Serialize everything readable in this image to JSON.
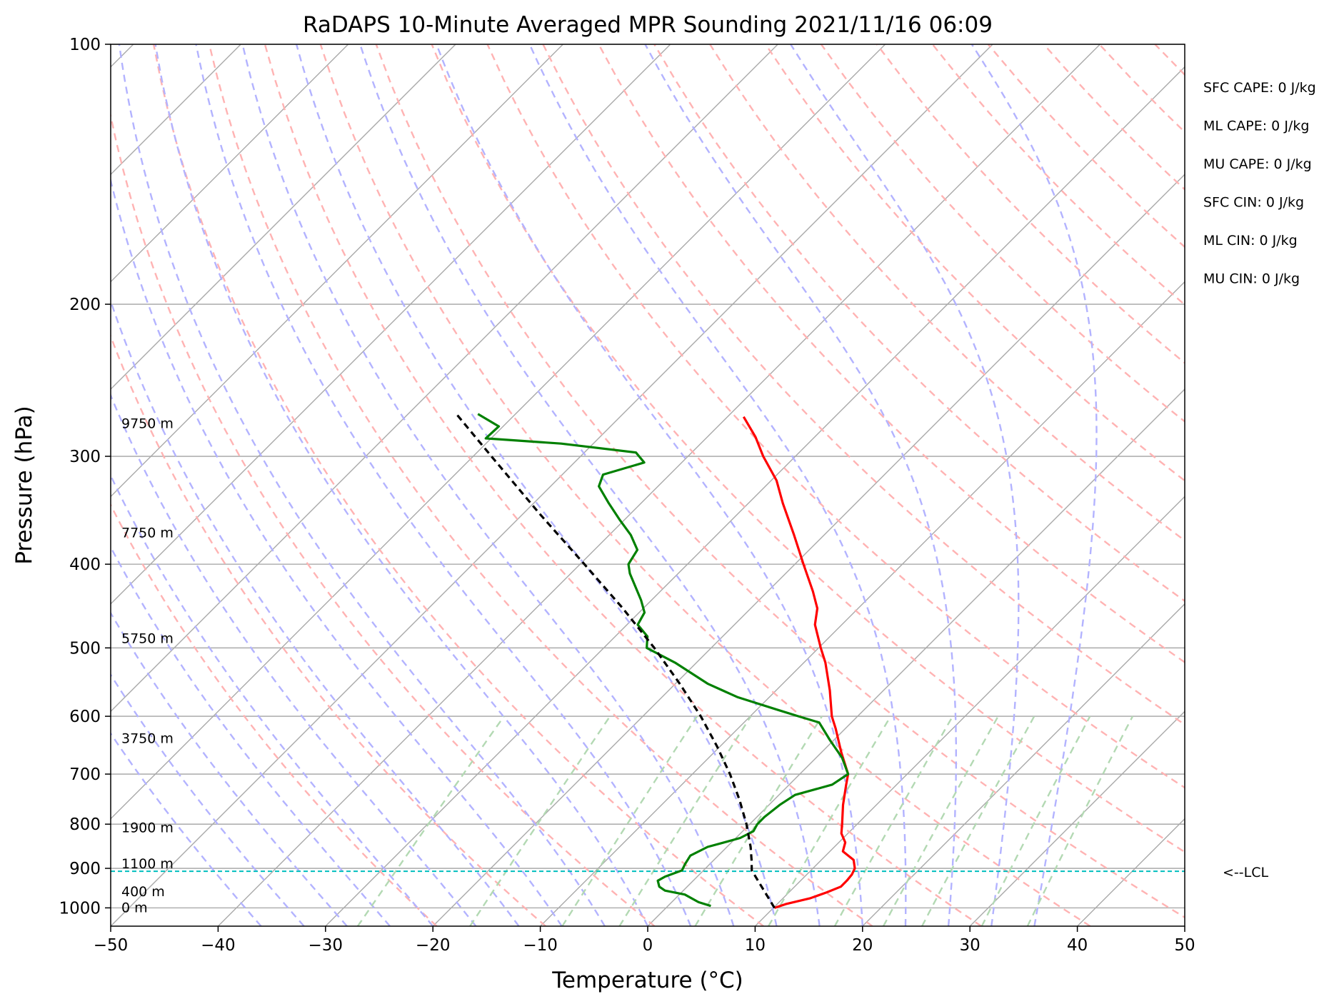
{
  "chart_data": {
    "type": "line",
    "title": "RaDAPS 10-Minute Averaged MPR Sounding 2021/11/16 06:09",
    "xlabel": "Temperature (°C)",
    "ylabel": "Pressure (hPa)",
    "xlim": [
      -50,
      50
    ],
    "ylim": [
      1050,
      100
    ],
    "y_scale": "log",
    "grid": true,
    "x_ticks": [
      -50,
      -40,
      -30,
      -20,
      -10,
      0,
      10,
      20,
      30,
      40,
      50
    ],
    "x_tick_labels": [
      "−50",
      "−40",
      "−30",
      "−20",
      "−10",
      "0",
      "10",
      "20",
      "30",
      "40",
      "50"
    ],
    "y_ticks": [
      100,
      200,
      300,
      400,
      500,
      600,
      700,
      800,
      900,
      1000
    ],
    "y_tick_labels": [
      "100",
      "200",
      "300",
      "400",
      "500",
      "600",
      "700",
      "800",
      "900",
      "1000"
    ],
    "series": [
      {
        "role": "temperature",
        "color": "#ff0000",
        "points": [
          {
            "p": 1000,
            "t": 10.1
          },
          {
            "p": 990,
            "t": 10.8
          },
          {
            "p": 975,
            "t": 12.5
          },
          {
            "p": 960,
            "t": 13.5
          },
          {
            "p": 945,
            "t": 14.3
          },
          {
            "p": 930,
            "t": 14.3
          },
          {
            "p": 915,
            "t": 14.2
          },
          {
            "p": 900,
            "t": 13.9
          },
          {
            "p": 880,
            "t": 13.0
          },
          {
            "p": 860,
            "t": 11.2
          },
          {
            "p": 840,
            "t": 10.6
          },
          {
            "p": 820,
            "t": 9.4
          },
          {
            "p": 800,
            "t": 8.6
          },
          {
            "p": 760,
            "t": 6.9
          },
          {
            "p": 720,
            "t": 5.3
          },
          {
            "p": 700,
            "t": 4.5
          },
          {
            "p": 660,
            "t": 1.8
          },
          {
            "p": 620,
            "t": -0.9
          },
          {
            "p": 600,
            "t": -2.4
          },
          {
            "p": 560,
            "t": -5.0
          },
          {
            "p": 520,
            "t": -8.0
          },
          {
            "p": 500,
            "t": -9.8
          },
          {
            "p": 470,
            "t": -12.5
          },
          {
            "p": 450,
            "t": -13.8
          },
          {
            "p": 430,
            "t": -15.8
          },
          {
            "p": 400,
            "t": -19.2
          },
          {
            "p": 370,
            "t": -22.8
          },
          {
            "p": 340,
            "t": -26.8
          },
          {
            "p": 320,
            "t": -29.5
          },
          {
            "p": 300,
            "t": -33.0
          },
          {
            "p": 285,
            "t": -35.5
          },
          {
            "p": 270,
            "t": -38.5
          }
        ]
      },
      {
        "role": "dewpoint",
        "color": "#008000",
        "points": [
          {
            "p": 995,
            "t": 4.0
          },
          {
            "p": 985,
            "t": 2.5
          },
          {
            "p": 965,
            "t": 0.5
          },
          {
            "p": 955,
            "t": -1.7
          },
          {
            "p": 945,
            "t": -2.6
          },
          {
            "p": 930,
            "t": -3.3
          },
          {
            "p": 920,
            "t": -3.0
          },
          {
            "p": 905,
            "t": -2.0
          },
          {
            "p": 890,
            "t": -2.3
          },
          {
            "p": 870,
            "t": -2.6
          },
          {
            "p": 850,
            "t": -1.8
          },
          {
            "p": 840,
            "t": -0.7
          },
          {
            "p": 830,
            "t": 0.4
          },
          {
            "p": 815,
            "t": 1.0
          },
          {
            "p": 800,
            "t": 0.7
          },
          {
            "p": 785,
            "t": 0.7
          },
          {
            "p": 760,
            "t": 1.0
          },
          {
            "p": 740,
            "t": 1.5
          },
          {
            "p": 720,
            "t": 4.0
          },
          {
            "p": 700,
            "t": 4.5
          },
          {
            "p": 670,
            "t": 2.4
          },
          {
            "p": 640,
            "t": -0.3
          },
          {
            "p": 610,
            "t": -3.0
          },
          {
            "p": 600,
            "t": -5.5
          },
          {
            "p": 590,
            "t": -8.0
          },
          {
            "p": 570,
            "t": -13.0
          },
          {
            "p": 550,
            "t": -17.0
          },
          {
            "p": 520,
            "t": -22.0
          },
          {
            "p": 500,
            "t": -26.0
          },
          {
            "p": 485,
            "t": -27.0
          },
          {
            "p": 470,
            "t": -29.0
          },
          {
            "p": 455,
            "t": -29.5
          },
          {
            "p": 440,
            "t": -31.0
          },
          {
            "p": 410,
            "t": -34.5
          },
          {
            "p": 400,
            "t": -35.5
          },
          {
            "p": 385,
            "t": -36.0
          },
          {
            "p": 370,
            "t": -38.0
          },
          {
            "p": 355,
            "t": -40.5
          },
          {
            "p": 340,
            "t": -43.0
          },
          {
            "p": 325,
            "t": -45.5
          },
          {
            "p": 315,
            "t": -46.2
          },
          {
            "p": 305,
            "t": -43.5
          },
          {
            "p": 297,
            "t": -45.2
          },
          {
            "p": 290,
            "t": -53.0
          },
          {
            "p": 286,
            "t": -60.5
          },
          {
            "p": 277,
            "t": -60.4
          },
          {
            "p": 268,
            "t": -63.5
          }
        ]
      },
      {
        "role": "parcel",
        "color": "#000000",
        "style": "dashed",
        "points": [
          {
            "p": 1000,
            "t": 10.1
          },
          {
            "p": 905,
            "t": 4.5
          },
          {
            "p": 880,
            "t": 3.5
          },
          {
            "p": 850,
            "t": 2.2
          },
          {
            "p": 800,
            "t": -0.3
          },
          {
            "p": 750,
            "t": -3.2
          },
          {
            "p": 700,
            "t": -6.5
          },
          {
            "p": 650,
            "t": -10.3
          },
          {
            "p": 600,
            "t": -14.6
          },
          {
            "p": 550,
            "t": -19.6
          },
          {
            "p": 500,
            "t": -25.3
          },
          {
            "p": 450,
            "t": -31.9
          },
          {
            "p": 400,
            "t": -39.6
          },
          {
            "p": 350,
            "t": -48.4
          },
          {
            "p": 300,
            "t": -58.3
          },
          {
            "p": 268,
            "t": -65.5
          }
        ]
      }
    ],
    "lcl": {
      "pressure": 907,
      "label": "<--LCL",
      "color": "#00bfbf"
    },
    "height_labels": [
      {
        "p": 1000,
        "text": "0 m"
      },
      {
        "p": 958,
        "text": "400 m"
      },
      {
        "p": 890,
        "text": "1100 m"
      },
      {
        "p": 808,
        "text": "1900 m"
      },
      {
        "p": 637,
        "text": "3750 m"
      },
      {
        "p": 488,
        "text": "5750 m"
      },
      {
        "p": 368,
        "text": "7750 m"
      },
      {
        "p": 275,
        "text": "9750 m"
      }
    ],
    "stats": [
      "SFC CAPE: 0 J/kg",
      "ML CAPE: 0 J/kg",
      "MU CAPE: 0 J/kg",
      "SFC CIN: 0 J/kg",
      "ML CIN: 0 J/kg",
      "MU CIN: 0 J/kg"
    ],
    "background_lines": {
      "isotherms_color": "#a9a9a9",
      "dry_adiabats_color": "#ffb3b3",
      "moist_adiabats_color": "#b3b3ff",
      "mixing_ratio_color": "#b3d9b3"
    }
  }
}
